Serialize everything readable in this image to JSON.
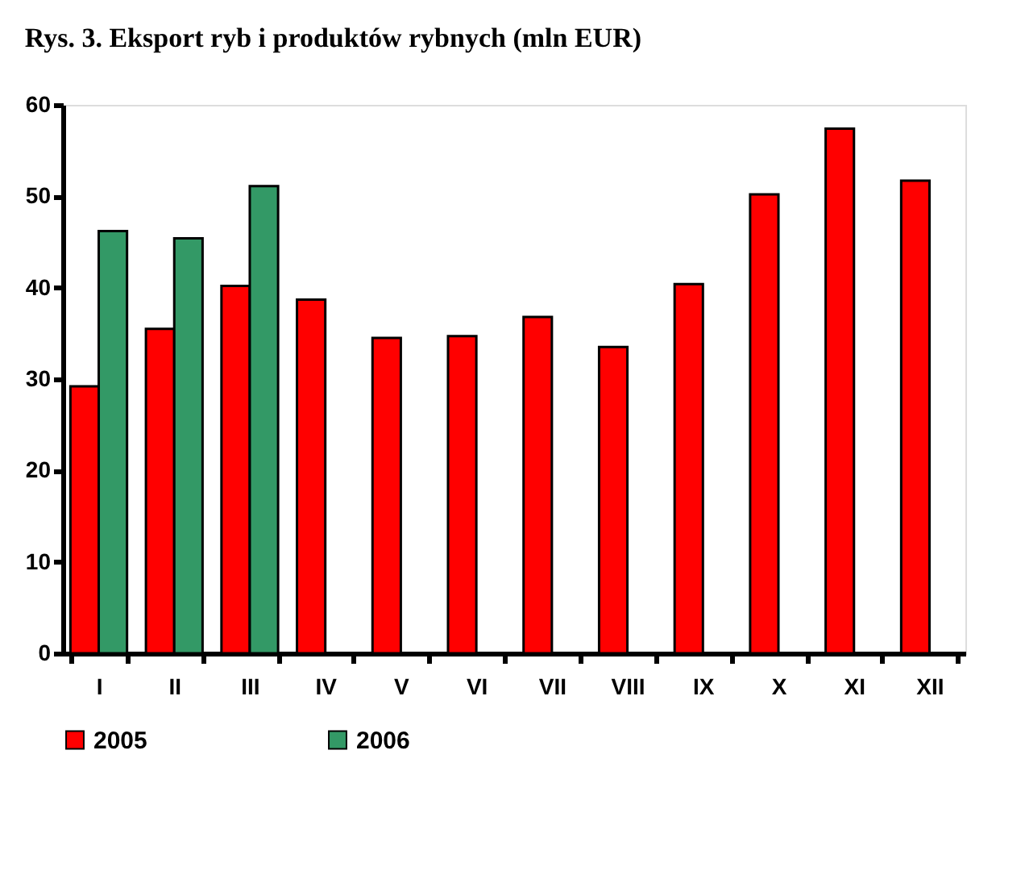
{
  "chart_data": {
    "type": "bar",
    "title": "Rys. 3. Eksport ryb i produktów rybnych (mln EUR)",
    "categories": [
      "I",
      "II",
      "III",
      "IV",
      "V",
      "VI",
      "VII",
      "VIII",
      "IX",
      "X",
      "XI",
      "XII"
    ],
    "series": [
      {
        "name": "2005",
        "color": "#ff0000",
        "values": [
          29.2,
          35.5,
          40.2,
          38.7,
          34.5,
          34.7,
          36.8,
          33.5,
          40.4,
          50.2,
          57.4,
          51.7
        ]
      },
      {
        "name": "2006",
        "color": "#339966",
        "values": [
          46.2,
          45.4,
          51.1,
          null,
          null,
          null,
          null,
          null,
          null,
          null,
          null,
          null
        ]
      }
    ],
    "ylim": [
      0,
      60
    ],
    "yticks": [
      0,
      10,
      20,
      30,
      40,
      50,
      60
    ],
    "grid": false,
    "legend": "bottom"
  }
}
